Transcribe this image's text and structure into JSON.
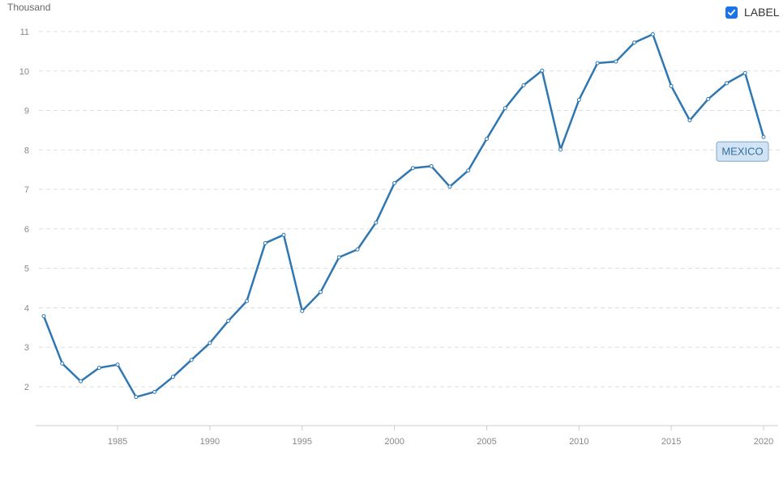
{
  "controls": {
    "label_toggle": "LABEL",
    "label_checked": true
  },
  "colors": {
    "line": "#2e77b3",
    "marker": "#ffffff",
    "tag_bg": "#d2e4f3",
    "tag_border": "#7aa7cc",
    "tag_text": "#2e6ea6",
    "grid": "#dddddd",
    "tick": "#888888",
    "checkbox": "#1a73e8"
  },
  "chart_data": {
    "type": "line",
    "unit_label": "Thousand",
    "ylim": [
      1,
      11
    ],
    "yticks": [
      "2",
      "3",
      "4",
      "5",
      "6",
      "7",
      "8",
      "9",
      "10",
      "11"
    ],
    "xlim": [
      1981,
      2020.5
    ],
    "xticks": [
      "1985",
      "1990",
      "1995",
      "2000",
      "2005",
      "2010",
      "2015",
      "2020"
    ],
    "grid": "horizontal-dashed",
    "series": [
      {
        "name": "MEXICO",
        "x": [
          1981,
          1982,
          1983,
          1984,
          1985,
          1986,
          1987,
          1988,
          1989,
          1990,
          1991,
          1992,
          1993,
          1994,
          1995,
          1996,
          1997,
          1998,
          1999,
          2000,
          2001,
          2002,
          2003,
          2004,
          2005,
          2006,
          2007,
          2008,
          2009,
          2010,
          2011,
          2012,
          2013,
          2014,
          2015,
          2016,
          2017,
          2018,
          2019,
          2020
        ],
        "values": [
          3.79,
          2.59,
          2.14,
          2.48,
          2.56,
          1.74,
          1.87,
          2.25,
          2.68,
          3.11,
          3.67,
          4.17,
          5.64,
          5.85,
          3.92,
          4.4,
          5.28,
          5.48,
          6.16,
          7.16,
          7.54,
          7.59,
          7.07,
          7.48,
          8.28,
          9.06,
          9.64,
          10.01,
          8.01,
          9.27,
          10.2,
          10.24,
          10.72,
          10.93,
          9.62,
          8.75,
          9.29,
          9.69,
          9.95,
          8.33
        ]
      }
    ]
  }
}
